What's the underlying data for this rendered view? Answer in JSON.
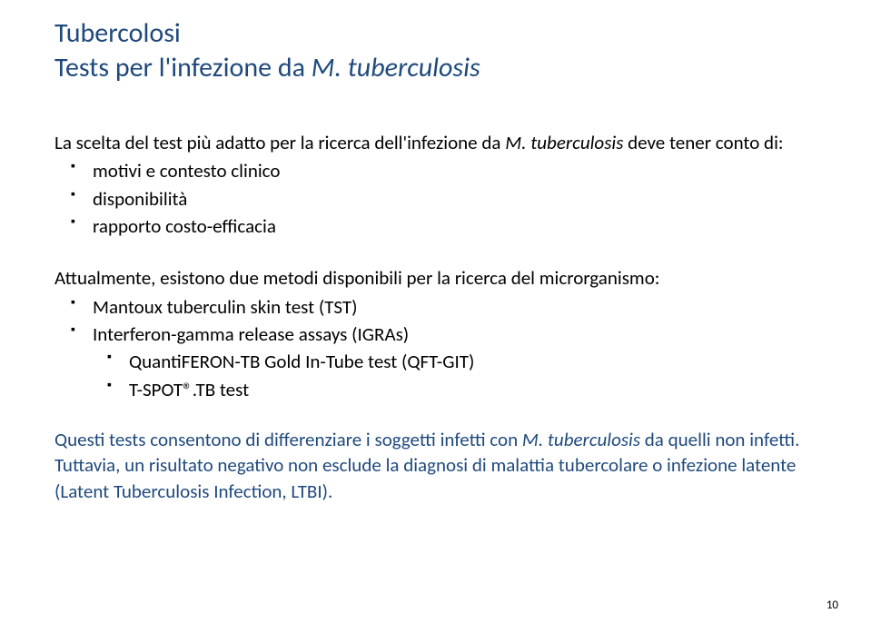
{
  "title": {
    "line1": "Tubercolosi",
    "line2_prefix": "Tests per l'infezione da ",
    "line2_italic": "M. tuberculosis",
    "color": "#1f497d",
    "fontsize": 30
  },
  "lead": {
    "text_prefix": "La scelta del test più adatto per la ricerca dell'infezione da ",
    "text_italic": "M. tuberculosis",
    "text_suffix": " deve tener conto di:",
    "fontsize": 21
  },
  "criteria": [
    "motivi e contesto clinico",
    "disponibilità",
    "rapporto costo-efficacia"
  ],
  "methods_intro": "Attualmente, esistono due metodi disponibili per la ricerca del microrganismo:",
  "methods": [
    {
      "label": "Mantoux tuberculin skin test (TST)",
      "level": 1
    },
    {
      "label": "Interferon-gamma release assays (IGRAs)",
      "level": 1
    },
    {
      "label": "QuantiFERON-TB Gold In-Tube test (QFT-GIT)",
      "level": 2
    },
    {
      "label": "T-SPOT®.TB test",
      "level": 2
    }
  ],
  "footnote": {
    "part1": "Questi tests consentono di differenziare i soggetti infetti con ",
    "part1_italic": "M. tuberculosis ",
    "part1_suffix": "da quelli non infetti.",
    "part2": "Tuttavia, un risultato negativo non esclude la diagnosi di malattia tubercolare o infezione latente (Latent Tuberculosis Infection, LTBI).",
    "color": "#1f497d"
  },
  "page_number": "10",
  "body_fontsize": 21,
  "background_color": "#ffffff",
  "text_color": "#000000"
}
